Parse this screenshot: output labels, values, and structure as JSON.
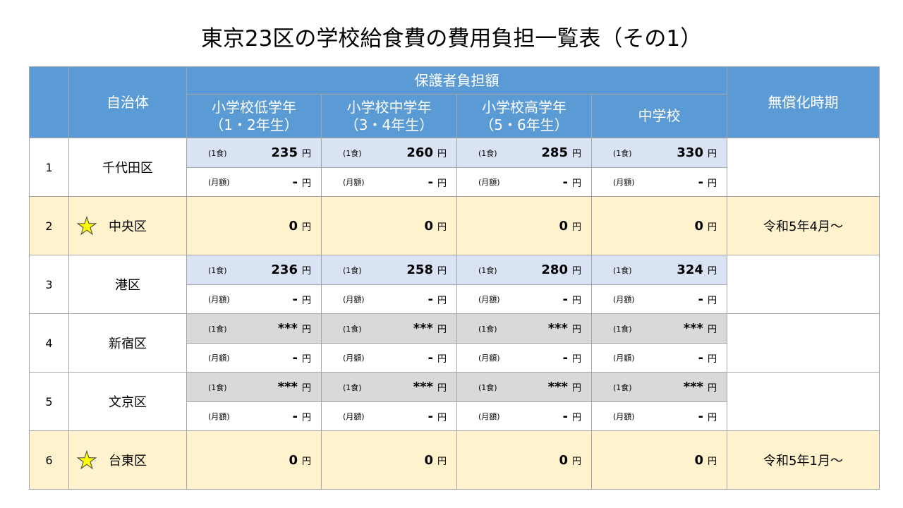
{
  "title": "東京23区の学校給食費の費用負担一覧表（その1）",
  "colors": {
    "header_bg": "#5b9bd5",
    "header_text": "#ffffff",
    "border": "#a6a6a6",
    "star_fill": "#ffff00",
    "star_stroke": "#404040"
  },
  "table": {
    "header": {
      "municipality": "自治体",
      "guardian_burden": "保護者負担額",
      "free_period": "無償化時期",
      "grades": [
        {
          "name": "小学校低学年",
          "years": "（1・2年生）"
        },
        {
          "name": "小学校中学年",
          "years": "（3・4年生）"
        },
        {
          "name": "小学校高学年",
          "years": "（5・6年生）"
        },
        {
          "name": "中学校"
        }
      ]
    },
    "labels": {
      "per_meal": "(1食)",
      "monthly": "(月額)",
      "yen": "円"
    },
    "rows": [
      {
        "number": "1",
        "ward": "千代田区",
        "free": false,
        "per_meal_bg": "#dae3f3",
        "per_meal": [
          "235",
          "260",
          "285",
          "330"
        ],
        "monthly": [
          "-",
          "-",
          "-",
          "-"
        ]
      },
      {
        "number": "2",
        "ward": "中央区",
        "free": true,
        "icon": "star-icon",
        "row_bg": "#fff2cc",
        "amounts": [
          "0",
          "0",
          "0",
          "0"
        ],
        "free_period": "令和5年4月～"
      },
      {
        "number": "3",
        "ward": "港区",
        "free": false,
        "per_meal_bg": "#dae3f3",
        "per_meal": [
          "236",
          "258",
          "280",
          "324"
        ],
        "monthly": [
          "-",
          "-",
          "-",
          "-"
        ]
      },
      {
        "number": "4",
        "ward": "新宿区",
        "free": false,
        "per_meal_bg": "#d9d9d9",
        "per_meal": [
          "***",
          "***",
          "***",
          "***"
        ],
        "monthly": [
          "-",
          "-",
          "-",
          "-"
        ]
      },
      {
        "number": "5",
        "ward": "文京区",
        "free": false,
        "per_meal_bg": "#d9d9d9",
        "per_meal": [
          "***",
          "***",
          "***",
          "***"
        ],
        "monthly": [
          "-",
          "-",
          "-",
          "-"
        ]
      },
      {
        "number": "6",
        "ward": "台東区",
        "free": true,
        "icon": "star-icon",
        "row_bg": "#fff2cc",
        "amounts": [
          "0",
          "0",
          "0",
          "0"
        ],
        "free_period": "令和5年1月～"
      }
    ]
  }
}
